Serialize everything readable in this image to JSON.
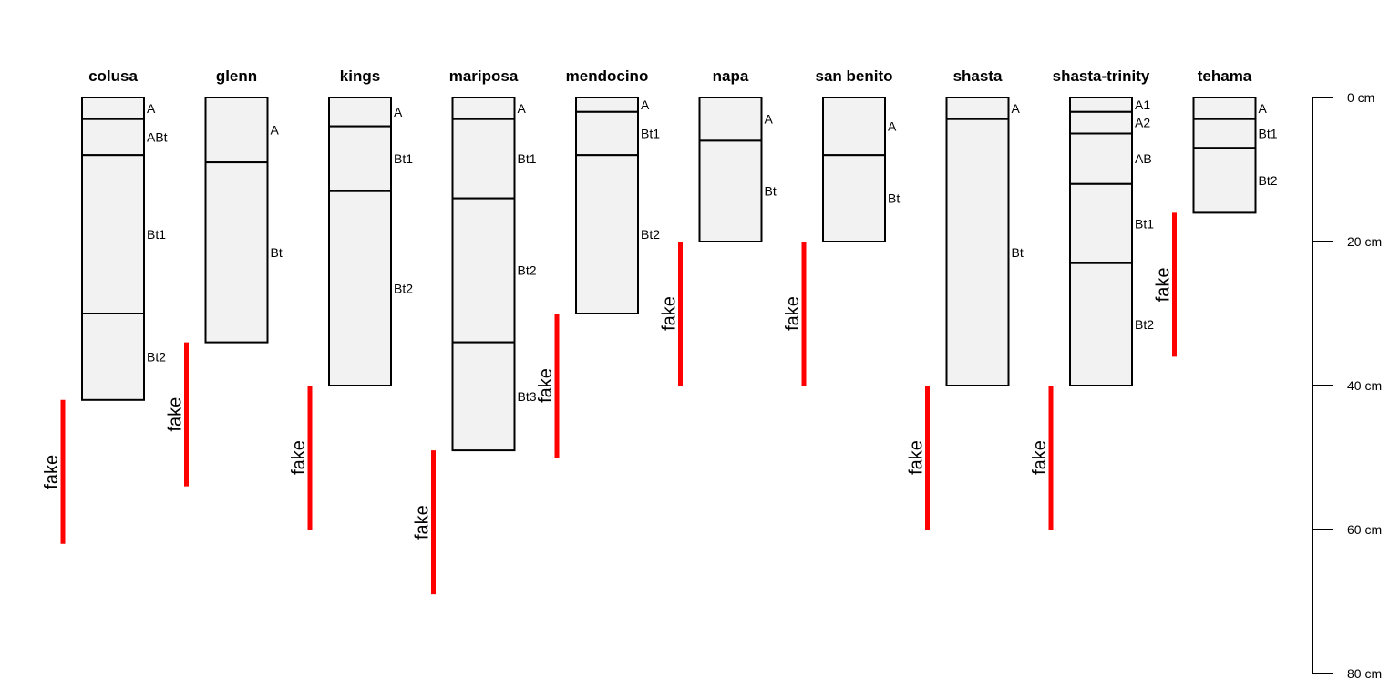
{
  "chart_data": {
    "type": "soil-profile",
    "depth_unit": "cm",
    "depth_axis": {
      "range": [
        0,
        80
      ],
      "ticks": [
        0,
        20,
        40,
        60,
        80
      ],
      "tick_labels": [
        "0 cm",
        "20 cm",
        "40 cm",
        "60 cm",
        "80 cm"
      ],
      "position": "right"
    },
    "colors": {
      "horizon_fill": "#f2f2f2",
      "horizon_stroke": "#000000",
      "bracket": "#ff0000"
    },
    "profiles": [
      {
        "name": "colusa",
        "horizons": [
          {
            "label": "A",
            "top": 0,
            "bottom": 3
          },
          {
            "label": "ABt",
            "top": 3,
            "bottom": 8
          },
          {
            "label": "Bt1",
            "top": 8,
            "bottom": 30
          },
          {
            "label": "Bt2",
            "top": 30,
            "bottom": 42
          }
        ],
        "bracket": {
          "label": "fake",
          "top": 42,
          "bottom": 62
        }
      },
      {
        "name": "glenn",
        "horizons": [
          {
            "label": "A",
            "top": 0,
            "bottom": 9
          },
          {
            "label": "Bt",
            "top": 9,
            "bottom": 34
          }
        ],
        "bracket": {
          "label": "fake",
          "top": 34,
          "bottom": 54
        }
      },
      {
        "name": "kings",
        "horizons": [
          {
            "label": "A",
            "top": 0,
            "bottom": 4
          },
          {
            "label": "Bt1",
            "top": 4,
            "bottom": 13
          },
          {
            "label": "Bt2",
            "top": 13,
            "bottom": 40
          }
        ],
        "bracket": {
          "label": "fake",
          "top": 40,
          "bottom": 60
        }
      },
      {
        "name": "mariposa",
        "horizons": [
          {
            "label": "A",
            "top": 0,
            "bottom": 3
          },
          {
            "label": "Bt1",
            "top": 3,
            "bottom": 14
          },
          {
            "label": "Bt2",
            "top": 14,
            "bottom": 34
          },
          {
            "label": "Bt3",
            "top": 34,
            "bottom": 49
          }
        ],
        "bracket": {
          "label": "fake",
          "top": 49,
          "bottom": 69
        }
      },
      {
        "name": "mendocino",
        "horizons": [
          {
            "label": "A",
            "top": 0,
            "bottom": 2
          },
          {
            "label": "Bt1",
            "top": 2,
            "bottom": 8
          },
          {
            "label": "Bt2",
            "top": 8,
            "bottom": 30
          }
        ],
        "bracket": {
          "label": "fake",
          "top": 30,
          "bottom": 50
        }
      },
      {
        "name": "napa",
        "horizons": [
          {
            "label": "A",
            "top": 0,
            "bottom": 6
          },
          {
            "label": "Bt",
            "top": 6,
            "bottom": 20
          }
        ],
        "bracket": {
          "label": "fake",
          "top": 20,
          "bottom": 40
        }
      },
      {
        "name": "san benito",
        "horizons": [
          {
            "label": "A",
            "top": 0,
            "bottom": 8
          },
          {
            "label": "Bt",
            "top": 8,
            "bottom": 20
          }
        ],
        "bracket": {
          "label": "fake",
          "top": 20,
          "bottom": 40
        }
      },
      {
        "name": "shasta",
        "horizons": [
          {
            "label": "A",
            "top": 0,
            "bottom": 3
          },
          {
            "label": "Bt",
            "top": 3,
            "bottom": 40
          }
        ],
        "bracket": {
          "label": "fake",
          "top": 40,
          "bottom": 60
        }
      },
      {
        "name": "shasta-trinity",
        "horizons": [
          {
            "label": "A1",
            "top": 0,
            "bottom": 2
          },
          {
            "label": "A2",
            "top": 2,
            "bottom": 5
          },
          {
            "label": "AB",
            "top": 5,
            "bottom": 12
          },
          {
            "label": "Bt1",
            "top": 12,
            "bottom": 23
          },
          {
            "label": "Bt2",
            "top": 23,
            "bottom": 40
          }
        ],
        "bracket": {
          "label": "fake",
          "top": 40,
          "bottom": 60
        }
      },
      {
        "name": "tehama",
        "horizons": [
          {
            "label": "A",
            "top": 0,
            "bottom": 3
          },
          {
            "label": "Bt1",
            "top": 3,
            "bottom": 7
          },
          {
            "label": "Bt2",
            "top": 7,
            "bottom": 16
          }
        ],
        "bracket": {
          "label": "fake",
          "top": 16,
          "bottom": 36
        }
      }
    ]
  }
}
